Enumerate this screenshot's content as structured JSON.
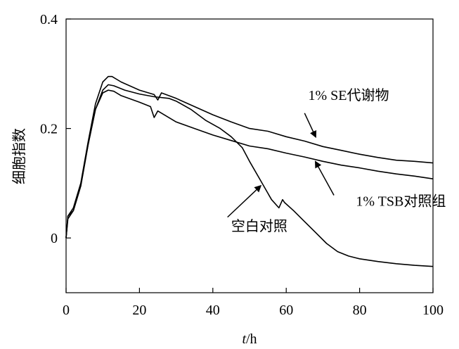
{
  "chart_data": {
    "type": "line",
    "title": "",
    "xlabel_italic": "t",
    "xlabel_unit": "/h",
    "ylabel": "细胞指数",
    "xlim": [
      0,
      100
    ],
    "ylim": [
      -0.1,
      0.4
    ],
    "xticks": [
      0,
      20,
      40,
      60,
      80,
      100
    ],
    "yticks": [
      0,
      0.2,
      0.4
    ],
    "ytick_labels": [
      "0",
      "0.2",
      "0.4"
    ],
    "grid": false,
    "legend": "none",
    "series": [
      {
        "name": "1% SE代谢物",
        "points": [
          [
            0,
            0
          ],
          [
            0.5,
            0.04
          ],
          [
            2,
            0.055
          ],
          [
            4,
            0.1
          ],
          [
            6,
            0.175
          ],
          [
            8,
            0.245
          ],
          [
            10,
            0.285
          ],
          [
            11.5,
            0.295
          ],
          [
            12.5,
            0.295
          ],
          [
            15,
            0.285
          ],
          [
            20,
            0.27
          ],
          [
            24,
            0.262
          ],
          [
            25,
            0.252
          ],
          [
            26,
            0.265
          ],
          [
            30,
            0.255
          ],
          [
            35,
            0.24
          ],
          [
            40,
            0.225
          ],
          [
            45,
            0.212
          ],
          [
            50,
            0.2
          ],
          [
            55,
            0.195
          ],
          [
            60,
            0.185
          ],
          [
            65,
            0.177
          ],
          [
            70,
            0.167
          ],
          [
            75,
            0.16
          ],
          [
            80,
            0.153
          ],
          [
            85,
            0.147
          ],
          [
            90,
            0.142
          ],
          [
            95,
            0.14
          ],
          [
            100,
            0.137
          ]
        ]
      },
      {
        "name": "1% TSB对照组",
        "points": [
          [
            0,
            0
          ],
          [
            0.5,
            0.04
          ],
          [
            2,
            0.05
          ],
          [
            4,
            0.095
          ],
          [
            6,
            0.17
          ],
          [
            8,
            0.235
          ],
          [
            10,
            0.265
          ],
          [
            11.5,
            0.27
          ],
          [
            13,
            0.268
          ],
          [
            15,
            0.26
          ],
          [
            20,
            0.248
          ],
          [
            23,
            0.24
          ],
          [
            24,
            0.22
          ],
          [
            25,
            0.232
          ],
          [
            30,
            0.212
          ],
          [
            35,
            0.2
          ],
          [
            40,
            0.188
          ],
          [
            45,
            0.178
          ],
          [
            50,
            0.168
          ],
          [
            55,
            0.163
          ],
          [
            60,
            0.155
          ],
          [
            65,
            0.148
          ],
          [
            70,
            0.14
          ],
          [
            75,
            0.133
          ],
          [
            80,
            0.128
          ],
          [
            85,
            0.122
          ],
          [
            90,
            0.117
          ],
          [
            95,
            0.113
          ],
          [
            100,
            0.108
          ]
        ]
      },
      {
        "name": "空白对照",
        "points": [
          [
            0,
            0
          ],
          [
            0.5,
            0.035
          ],
          [
            2,
            0.05
          ],
          [
            4,
            0.095
          ],
          [
            6,
            0.17
          ],
          [
            8,
            0.235
          ],
          [
            10,
            0.27
          ],
          [
            11.5,
            0.28
          ],
          [
            13,
            0.278
          ],
          [
            16,
            0.27
          ],
          [
            20,
            0.263
          ],
          [
            24,
            0.258
          ],
          [
            28,
            0.255
          ],
          [
            30,
            0.25
          ],
          [
            34,
            0.235
          ],
          [
            38,
            0.215
          ],
          [
            42,
            0.2
          ],
          [
            45,
            0.185
          ],
          [
            48,
            0.165
          ],
          [
            50,
            0.14
          ],
          [
            53,
            0.105
          ],
          [
            56,
            0.07
          ],
          [
            58,
            0.055
          ],
          [
            59,
            0.07
          ],
          [
            59.5,
            0.065
          ],
          [
            62,
            0.05
          ],
          [
            65,
            0.03
          ],
          [
            68,
            0.01
          ],
          [
            71,
            -0.01
          ],
          [
            74,
            -0.025
          ],
          [
            77,
            -0.033
          ],
          [
            80,
            -0.038
          ],
          [
            85,
            -0.043
          ],
          [
            90,
            -0.047
          ],
          [
            95,
            -0.05
          ],
          [
            100,
            -0.052
          ]
        ]
      }
    ],
    "annotations": [
      {
        "text": "1% SE代谢物",
        "text_at": [
          66,
          0.252
        ],
        "arrow_from": [
          65,
          0.228
        ],
        "arrow_to": [
          68,
          0.185
        ]
      },
      {
        "text": "1% TSB对照组",
        "text_at": [
          79,
          0.059
        ],
        "arrow_from": [
          73,
          0.078
        ],
        "arrow_to": [
          68,
          0.139
        ]
      },
      {
        "text": "空白对照",
        "text_at": [
          45,
          0.013
        ],
        "arrow_from": [
          44,
          0.038
        ],
        "arrow_to": [
          53,
          0.095
        ]
      }
    ]
  }
}
